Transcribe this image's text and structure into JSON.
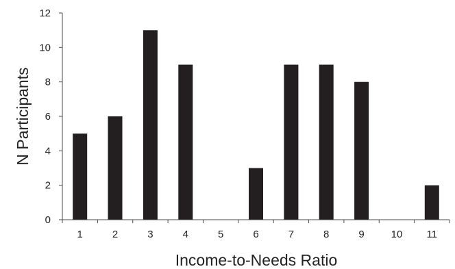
{
  "chart_data": {
    "type": "bar",
    "categories": [
      "1",
      "2",
      "3",
      "4",
      "5",
      "6",
      "7",
      "8",
      "9",
      "10",
      "11"
    ],
    "values": [
      5,
      6,
      11,
      9,
      0,
      3,
      9,
      9,
      8,
      0,
      2
    ],
    "xlabel": "Income-to-Needs Ratio",
    "ylabel": "N Participants",
    "ylim": [
      0,
      12
    ],
    "yticks": [
      0,
      2,
      4,
      6,
      8,
      10,
      12
    ],
    "grid": false,
    "bar_color": "#231f20"
  }
}
